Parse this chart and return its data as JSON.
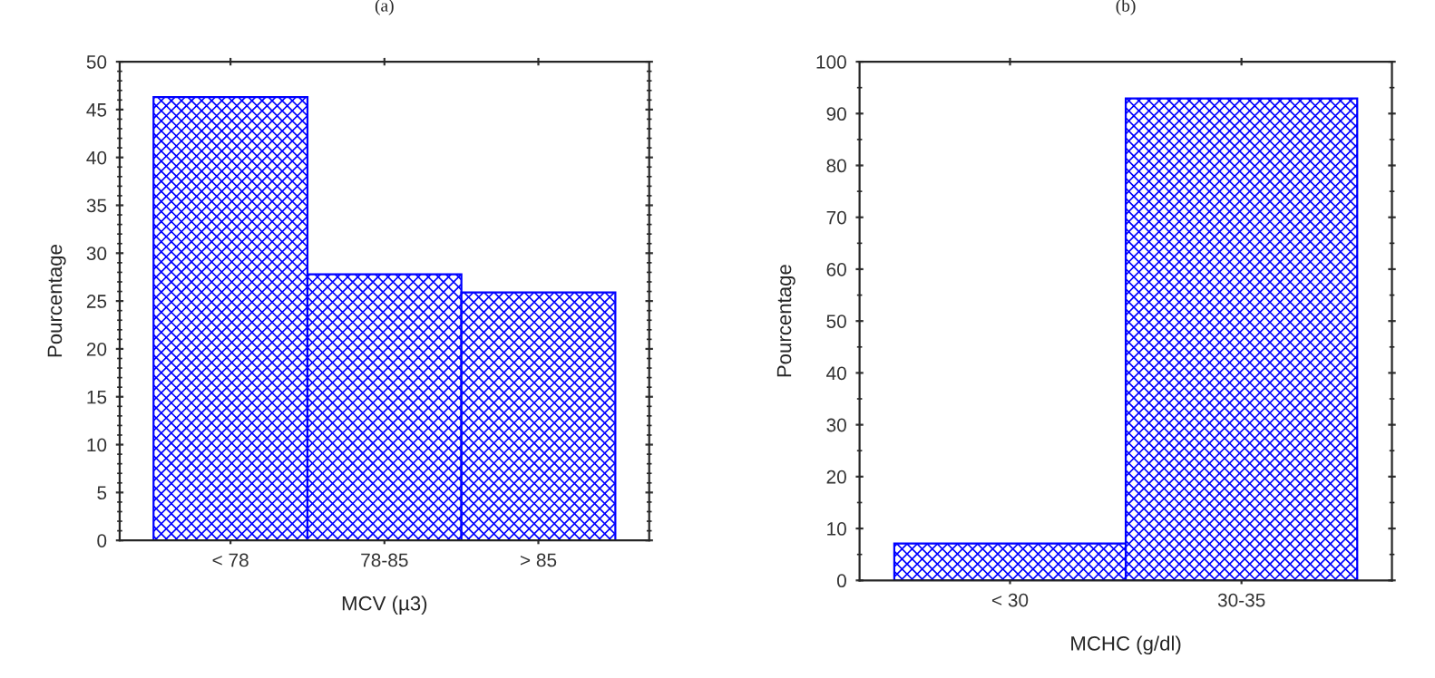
{
  "chart_data": [
    {
      "type": "bar",
      "title": "(a)",
      "xlabel": "MCV (µ3)",
      "ylabel": "Pourcentage",
      "categories": [
        "< 78",
        "78-85",
        "> 85"
      ],
      "values": [
        46.3,
        27.8,
        25.9
      ],
      "color": "#0000ff",
      "ylim": [
        0,
        50
      ],
      "yticks": [
        0,
        5,
        10,
        15,
        20,
        25,
        30,
        35,
        40,
        45,
        50
      ]
    },
    {
      "type": "bar",
      "title": "(b)",
      "xlabel": "MCHC (g/dl)",
      "ylabel": "Pourcentage",
      "categories": [
        "< 30",
        "30-35"
      ],
      "values": [
        7.1,
        92.9
      ],
      "color": "#0000ff",
      "ylim": [
        0,
        100
      ],
      "yticks": [
        0,
        10,
        20,
        30,
        40,
        50,
        60,
        70,
        80,
        90,
        100
      ]
    }
  ]
}
